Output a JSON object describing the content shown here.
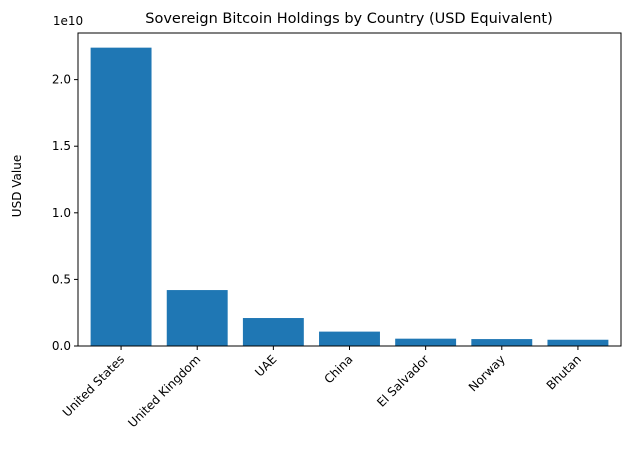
{
  "chart_data": {
    "type": "bar",
    "title": "Sovereign Bitcoin Holdings by Country (USD Equivalent)",
    "xlabel": "",
    "ylabel": "USD Value",
    "offset_text": "1e10",
    "categories": [
      "United States",
      "United Kingdom",
      "UAE",
      "China",
      "El Salvador",
      "Norway",
      "Bhutan"
    ],
    "values": [
      22400000000,
      4200000000,
      2100000000,
      1080000000,
      550000000,
      520000000,
      470000000
    ],
    "ylim": [
      0,
      23500000000
    ],
    "yticks": [
      0,
      5000000000,
      10000000000,
      15000000000,
      20000000000
    ],
    "ytick_labels": [
      "0.0",
      "0.5",
      "1.0",
      "1.5",
      "2.0"
    ],
    "bar_color": "#1f77b4",
    "grid": false,
    "legend": "none"
  }
}
